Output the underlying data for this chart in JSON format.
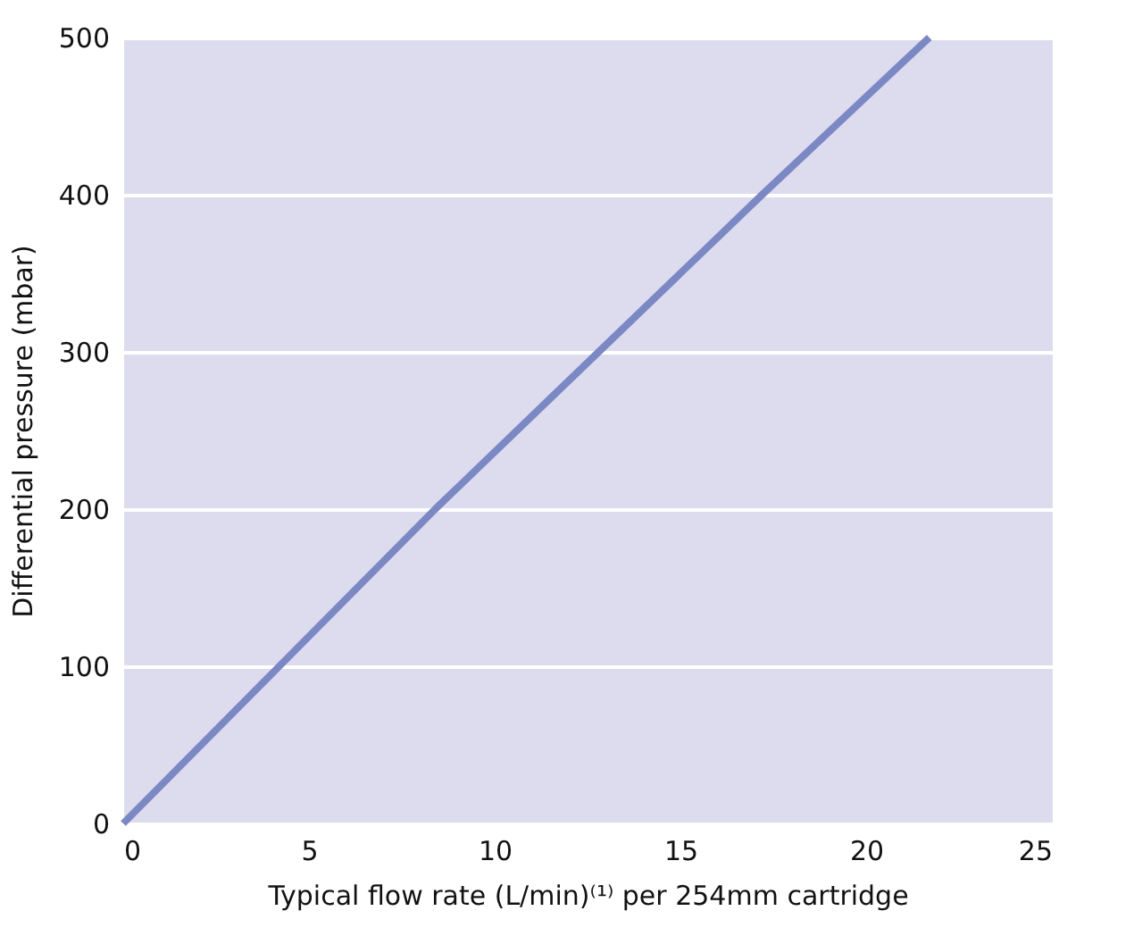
{
  "chart_data": {
    "type": "line",
    "xlabel": "Typical flow rate (L/min)⁽¹⁾ per 254mm cartridge",
    "ylabel": "Differential pressure (mbar)",
    "x": [
      0,
      4.2,
      8.4,
      12.8,
      17.2,
      21.7
    ],
    "series": [
      {
        "color": "#7b88c4",
        "values": [
          0,
          100,
          200,
          300,
          400,
          500
        ]
      }
    ],
    "xlim": [
      0,
      25
    ],
    "xticks": [
      0,
      5,
      10,
      15,
      20,
      25
    ],
    "ylim": [
      0,
      500
    ],
    "yticks": [
      0,
      100,
      200,
      300,
      400,
      500
    ],
    "grid": "y",
    "marker": "none",
    "line_style": "solid"
  }
}
